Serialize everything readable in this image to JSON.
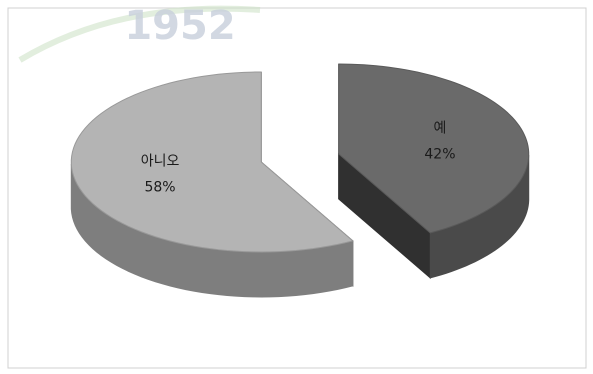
{
  "chart_data": {
    "type": "pie3d",
    "watermark": "1952",
    "categories": [
      "예",
      "아니오"
    ],
    "values": [
      42,
      58
    ],
    "value_labels": [
      "42%",
      "58%"
    ],
    "colors": [
      "#6a6a6a",
      "#b4b4b4"
    ],
    "explode": true
  }
}
